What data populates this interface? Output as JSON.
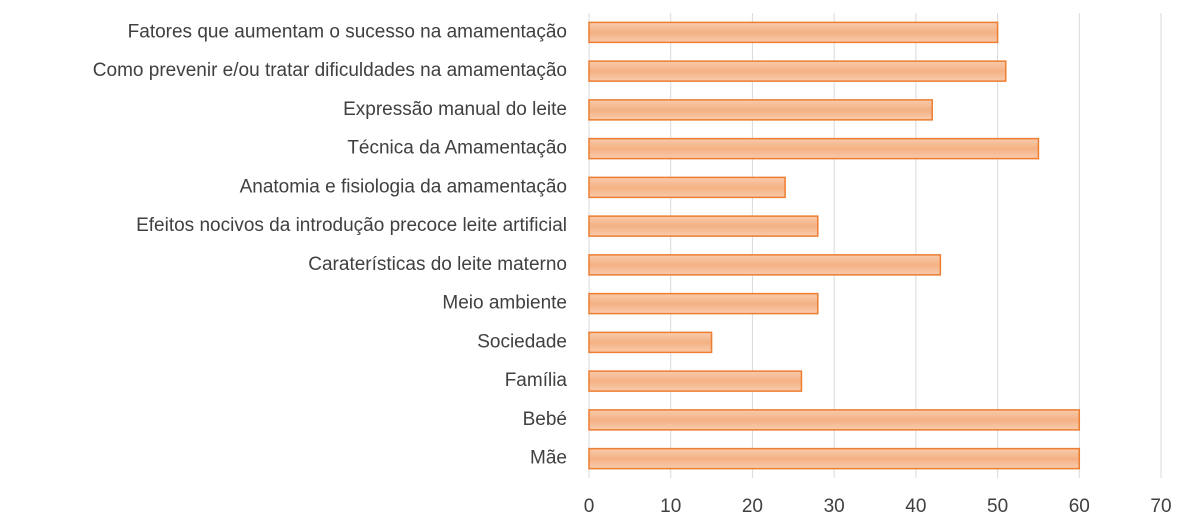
{
  "chart_data": {
    "type": "bar",
    "orientation": "horizontal",
    "categories": [
      "Fatores que aumentam o sucesso na amamentação",
      "Como prevenir e/ou tratar dificuldades na amamentação",
      "Expressão manual do leite",
      "Técnica da Amamentação",
      "Anatomia e fisiologia da amamentação",
      "Efeitos nocivos da introdução precoce leite artificial",
      "Caraterísticas do leite materno",
      "Meio ambiente",
      "Sociedade",
      "Família",
      "Bebé",
      "Mãe"
    ],
    "values": [
      50,
      51,
      42,
      55,
      24,
      28,
      43,
      28,
      15,
      26,
      60,
      60
    ],
    "color": "#f4b183",
    "edge_color": "#ed7d31",
    "xlim": [
      0,
      70
    ],
    "xticks": [
      0,
      10,
      20,
      30,
      40,
      50,
      60,
      70
    ],
    "grid": true
  }
}
